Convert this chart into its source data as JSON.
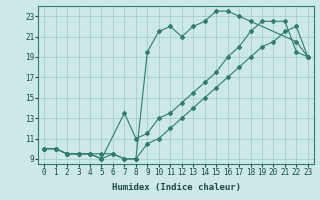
{
  "xlabel": "Humidex (Indice chaleur)",
  "xlim": [
    -0.5,
    23.5
  ],
  "ylim": [
    8.5,
    24.0
  ],
  "xticks": [
    0,
    1,
    2,
    3,
    4,
    5,
    6,
    7,
    8,
    9,
    10,
    11,
    12,
    13,
    14,
    15,
    16,
    17,
    18,
    19,
    20,
    21,
    22,
    23
  ],
  "yticks": [
    9,
    11,
    13,
    15,
    17,
    19,
    21,
    23
  ],
  "bg_color": "#cce8e8",
  "grid_color": "#aacccc",
  "line_color": "#2e7d6e",
  "curve1_x": [
    0,
    1,
    2,
    3,
    4,
    5,
    6,
    7,
    8,
    9,
    10,
    11,
    12,
    13,
    14,
    15,
    16,
    17,
    18,
    22,
    23
  ],
  "curve1_y": [
    10,
    10,
    9.5,
    9.5,
    9.5,
    9.5,
    9.5,
    9.0,
    9.0,
    19.5,
    21.5,
    22.0,
    21.0,
    22.0,
    22.5,
    23.5,
    23.5,
    23.0,
    22.5,
    20.5,
    19
  ],
  "curve2_x": [
    0,
    1,
    2,
    3,
    4,
    5,
    7,
    8,
    9,
    10,
    11,
    12,
    13,
    14,
    15,
    16,
    17,
    18,
    19,
    20,
    21,
    22,
    23
  ],
  "curve2_y": [
    10,
    10,
    9.5,
    9.5,
    9.5,
    9.0,
    13.5,
    11.0,
    11.5,
    13.0,
    13.5,
    14.5,
    15.5,
    16.5,
    17.5,
    19.0,
    20.0,
    21.5,
    22.5,
    22.5,
    22.5,
    19.5,
    19.0
  ],
  "curve3_x": [
    0,
    1,
    2,
    3,
    4,
    5,
    6,
    7,
    8,
    9,
    10,
    11,
    12,
    13,
    14,
    15,
    16,
    17,
    18,
    19,
    20,
    21,
    22,
    23
  ],
  "curve3_y": [
    10,
    10,
    9.5,
    9.5,
    9.5,
    9.0,
    9.5,
    9.0,
    9.0,
    10.5,
    11.0,
    12.0,
    13.0,
    14.0,
    15.0,
    16.0,
    17.0,
    18.0,
    19.0,
    20.0,
    20.5,
    21.5,
    22.0,
    19.0
  ]
}
